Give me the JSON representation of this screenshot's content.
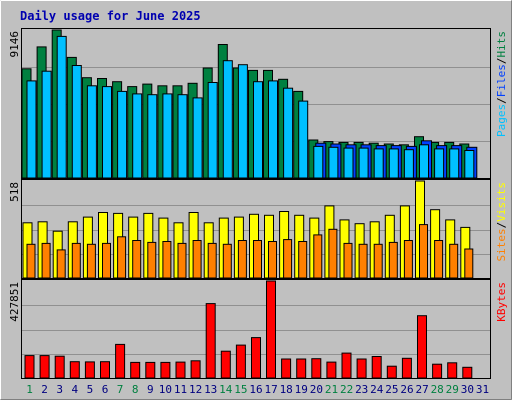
{
  "colors": {
    "background": "#c0c0c0",
    "border_light": "#ffffff",
    "border_dark": "#808080",
    "panel_border": "#000000",
    "grid": "#909090",
    "title": "#0000b0",
    "hits": "#008040",
    "files": "#0040ff",
    "pages": "#00c0ff",
    "visits": "#ffff00",
    "sites": "#ff8000",
    "kbytes": "#ff0000",
    "weekday_label": "#000080",
    "weekend_label": "#008040"
  },
  "chart_data": {
    "type": "bar",
    "title": "Daily usage for June 2025",
    "x": [
      "1",
      "2",
      "3",
      "4",
      "5",
      "6",
      "7",
      "8",
      "9",
      "10",
      "11",
      "12",
      "13",
      "14",
      "15",
      "16",
      "17",
      "18",
      "19",
      "20",
      "21",
      "22",
      "23",
      "24",
      "25",
      "26",
      "27",
      "28",
      "29",
      "30",
      "31"
    ],
    "weekend_days": [
      "1",
      "7",
      "8",
      "14",
      "15",
      "21",
      "22",
      "28",
      "29"
    ],
    "panels": [
      {
        "name": "top",
        "ymax": 9146,
        "tick_label": "9146",
        "legend": [
          "Pages",
          "Files",
          "Hits"
        ],
        "series": [
          {
            "name": "Hits",
            "values": [
              6750,
              8100,
              9146,
              7450,
              6200,
              6150,
              5950,
              5650,
              5800,
              5700,
              5700,
              5850,
              6800,
              8250,
              6800,
              6650,
              6650,
              6100,
              5350,
              2350,
              2250,
              2200,
              2200,
              2150,
              2100,
              2050,
              2550,
              2200,
              2200,
              2100,
              0
            ]
          },
          {
            "name": "Files",
            "values": [
              0,
              0,
              0,
              0,
              0,
              0,
              0,
              0,
              0,
              0,
              0,
              0,
              0,
              0,
              0,
              0,
              0,
              0,
              0,
              2150,
              2100,
              2050,
              2050,
              2000,
              2000,
              1950,
              2300,
              2000,
              2000,
              1900,
              0
            ]
          },
          {
            "name": "Pages",
            "values": [
              6000,
              6600,
              8750,
              6950,
              5700,
              5650,
              5350,
              5200,
              5150,
              5200,
              5150,
              4950,
              5900,
              7250,
              7000,
              5950,
              6000,
              5550,
              4750,
              1950,
              1900,
              1850,
              1850,
              1800,
              1800,
              1750,
              2050,
              1800,
              1800,
              1700,
              0
            ]
          }
        ]
      },
      {
        "name": "middle",
        "ymax": 518,
        "tick_label": "518",
        "legend": [
          "Sites",
          "Visits"
        ],
        "series": [
          {
            "name": "Visits",
            "values": [
              295,
              300,
              250,
              300,
              325,
              350,
              345,
              325,
              345,
              320,
              295,
              350,
              295,
              320,
              325,
              340,
              335,
              355,
              335,
              320,
              385,
              310,
              290,
              300,
              335,
              385,
              518,
              365,
              310,
              270,
              0
            ]
          },
          {
            "name": "Sites",
            "values": [
              180,
              185,
              150,
              185,
              180,
              185,
              220,
              200,
              190,
              195,
              185,
              200,
              185,
              180,
              200,
              200,
              195,
              205,
              195,
              230,
              260,
              185,
              180,
              180,
              190,
              200,
              285,
              200,
              180,
              155,
              0
            ]
          }
        ]
      },
      {
        "name": "bottom",
        "ymax": 427851,
        "tick_label": "427851",
        "legend": [
          "KBytes"
        ],
        "series": [
          {
            "name": "KBytes",
            "values": [
              99000,
              99000,
              96000,
              72000,
              71000,
              72000,
              148000,
              69000,
              69000,
              69000,
              70000,
              76000,
              328000,
              118000,
              145000,
              178000,
              427851,
              84000,
              84000,
              85000,
              70000,
              110000,
              84000,
              95000,
              52000,
              87000,
              275000,
              61000,
              67000,
              47000,
              0
            ]
          }
        ]
      }
    ]
  }
}
